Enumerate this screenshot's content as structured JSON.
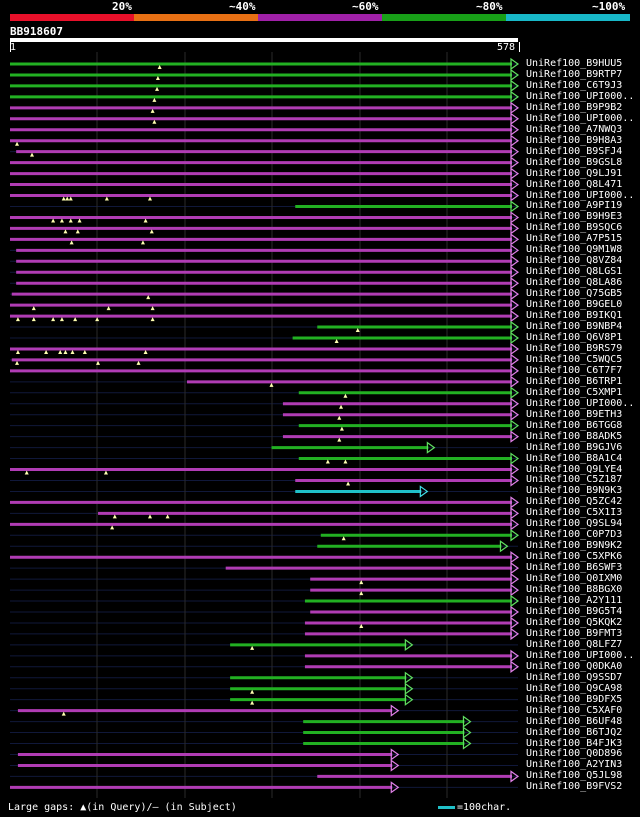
{
  "legend": {
    "labels": [
      "20%",
      "~40%",
      "~60%",
      "~80%",
      "~100%"
    ],
    "colors": [
      "#e8102a",
      "#e87014",
      "#a020a8",
      "#18a018",
      "#18b8c8"
    ]
  },
  "query": {
    "name": "BB918607",
    "start": "1",
    "end": "578",
    "length": 578
  },
  "footer": {
    "gaps": "Large gaps: ▲(in Query)/– (in Subject)",
    "scale": "=100char."
  },
  "colors": {
    "green": "#22b022",
    "magenta": "#b03cb4",
    "cyan": "#20c0c8",
    "arrow_green": "#60e060",
    "arrow_magenta": "#e080e8",
    "arrow_cyan": "#40e0e8"
  },
  "hits": [
    {
      "name": "UniRef100_B9HUU5",
      "start": 1,
      "end": 578,
      "color": "green",
      "gaps": [
        171
      ]
    },
    {
      "name": "UniRef100_B9RTP7",
      "start": 1,
      "end": 578,
      "color": "green",
      "gaps": [
        169
      ]
    },
    {
      "name": "UniRef100_C6T9J3",
      "start": 1,
      "end": 578,
      "color": "green",
      "gaps": [
        168
      ]
    },
    {
      "name": "UniRef100_UPI000..",
      "start": 1,
      "end": 578,
      "color": "green",
      "gaps": [
        165
      ]
    },
    {
      "name": "UniRef100_B9P9B2",
      "start": 1,
      "end": 578,
      "color": "magenta",
      "gaps": [
        163
      ]
    },
    {
      "name": "UniRef100_UPI000..",
      "start": 1,
      "end": 578,
      "color": "magenta",
      "gaps": [
        165
      ]
    },
    {
      "name": "UniRef100_A7NWQ3",
      "start": 1,
      "end": 578,
      "color": "magenta",
      "gaps": []
    },
    {
      "name": "UniRef100_B9H8A3",
      "start": 1,
      "end": 578,
      "color": "magenta",
      "gaps": [
        9
      ]
    },
    {
      "name": "UniRef100_B9SFJ4",
      "start": 8,
      "end": 578,
      "color": "magenta",
      "gaps": [
        26
      ]
    },
    {
      "name": "UniRef100_B9GSL8",
      "start": 1,
      "end": 578,
      "color": "magenta",
      "gaps": []
    },
    {
      "name": "UniRef100_Q9LJ91",
      "start": 1,
      "end": 578,
      "color": "magenta",
      "gaps": []
    },
    {
      "name": "UniRef100_Q8L471",
      "start": 1,
      "end": 578,
      "color": "magenta",
      "gaps": []
    },
    {
      "name": "UniRef100_UPI000..",
      "start": 1,
      "end": 578,
      "color": "magenta",
      "gaps": [
        62,
        66,
        70,
        111,
        160
      ]
    },
    {
      "name": "UniRef100_A9PI19",
      "start": 325,
      "end": 578,
      "color": "green",
      "gaps": []
    },
    {
      "name": "UniRef100_B9H9E3",
      "start": 1,
      "end": 578,
      "color": "magenta",
      "gaps": [
        50,
        60,
        70,
        80,
        155
      ]
    },
    {
      "name": "UniRef100_B9SQC6",
      "start": 1,
      "end": 578,
      "color": "magenta",
      "gaps": [
        64,
        78,
        162
      ]
    },
    {
      "name": "UniRef100_A7P515",
      "start": 1,
      "end": 578,
      "color": "magenta",
      "gaps": [
        71,
        152
      ]
    },
    {
      "name": "UniRef100_Q9M1W8",
      "start": 8,
      "end": 578,
      "color": "magenta",
      "gaps": []
    },
    {
      "name": "UniRef100_Q8VZ84",
      "start": 8,
      "end": 578,
      "color": "magenta",
      "gaps": []
    },
    {
      "name": "UniRef100_Q8LGS1",
      "start": 8,
      "end": 578,
      "color": "magenta",
      "gaps": []
    },
    {
      "name": "UniRef100_Q8LA86",
      "start": 8,
      "end": 578,
      "color": "magenta",
      "gaps": []
    },
    {
      "name": "UniRef100_Q75GB5",
      "start": 3,
      "end": 578,
      "color": "magenta",
      "gaps": [
        158
      ]
    },
    {
      "name": "UniRef100_B9GEL0",
      "start": 1,
      "end": 578,
      "color": "magenta",
      "gaps": [
        28,
        113,
        163
      ]
    },
    {
      "name": "UniRef100_B9IKQ1",
      "start": 1,
      "end": 578,
      "color": "magenta",
      "gaps": [
        10,
        28,
        50,
        60,
        75,
        100,
        163
      ]
    },
    {
      "name": "UniRef100_B9NBP4",
      "start": 350,
      "end": 578,
      "color": "green",
      "gaps": [
        396
      ]
    },
    {
      "name": "UniRef100_Q6V8P1",
      "start": 322,
      "end": 578,
      "color": "green",
      "gaps": [
        372
      ]
    },
    {
      "name": "UniRef100_B9RS79",
      "start": 1,
      "end": 578,
      "color": "magenta",
      "gaps": [
        10,
        42,
        58,
        64,
        72,
        86,
        155
      ]
    },
    {
      "name": "UniRef100_C5WQC5",
      "start": 3,
      "end": 578,
      "color": "magenta",
      "gaps": [
        9,
        101,
        147
      ]
    },
    {
      "name": "UniRef100_C6T7F7",
      "start": 1,
      "end": 578,
      "color": "magenta",
      "gaps": []
    },
    {
      "name": "UniRef100_B6TRP1",
      "start": 202,
      "end": 578,
      "color": "magenta",
      "gaps": [
        298
      ]
    },
    {
      "name": "UniRef100_C5XMP1",
      "start": 329,
      "end": 578,
      "color": "green",
      "gaps": [
        382
      ]
    },
    {
      "name": "UniRef100_UPI000..",
      "start": 311,
      "end": 578,
      "color": "magenta",
      "gaps": [
        377
      ]
    },
    {
      "name": "UniRef100_B9ETH3",
      "start": 311,
      "end": 578,
      "color": "magenta",
      "gaps": [
        375
      ]
    },
    {
      "name": "UniRef100_B6TGG8",
      "start": 329,
      "end": 578,
      "color": "green",
      "gaps": [
        378
      ]
    },
    {
      "name": "UniRef100_B8ADK5",
      "start": 311,
      "end": 578,
      "color": "magenta",
      "gaps": [
        375
      ]
    },
    {
      "name": "UniRef100_B9GJV6",
      "start": 298,
      "end": 483,
      "color": "green",
      "gaps": []
    },
    {
      "name": "UniRef100_B8A1C4",
      "start": 329,
      "end": 578,
      "color": "green",
      "gaps": [
        362,
        382
      ]
    },
    {
      "name": "UniRef100_Q9LYE4",
      "start": 1,
      "end": 578,
      "color": "magenta",
      "gaps": [
        20,
        110
      ]
    },
    {
      "name": "UniRef100_C5Z187",
      "start": 325,
      "end": 578,
      "color": "magenta",
      "gaps": [
        385
      ]
    },
    {
      "name": "UniRef100_B9N9K3",
      "start": 325,
      "end": 475,
      "color": "cyan",
      "gaps": []
    },
    {
      "name": "UniRef100_Q5ZC42",
      "start": 1,
      "end": 578,
      "color": "magenta",
      "gaps": []
    },
    {
      "name": "UniRef100_C5X1I3",
      "start": 101,
      "end": 578,
      "color": "magenta",
      "gaps": [
        120,
        160,
        180
      ]
    },
    {
      "name": "UniRef100_Q9SL94",
      "start": 1,
      "end": 578,
      "color": "magenta",
      "gaps": [
        117
      ]
    },
    {
      "name": "UniRef100_C0P7D3",
      "start": 354,
      "end": 578,
      "color": "green",
      "gaps": [
        380
      ]
    },
    {
      "name": "UniRef100_B9N9K2",
      "start": 350,
      "end": 566,
      "color": "green",
      "gaps": []
    },
    {
      "name": "UniRef100_C5XPK6",
      "start": 1,
      "end": 578,
      "color": "magenta",
      "gaps": []
    },
    {
      "name": "UniRef100_B6SWF3",
      "start": 246,
      "end": 578,
      "color": "magenta",
      "gaps": []
    },
    {
      "name": "UniRef100_Q0IXM0",
      "start": 342,
      "end": 578,
      "color": "magenta",
      "gaps": [
        400
      ]
    },
    {
      "name": "UniRef100_B8BGX0",
      "start": 342,
      "end": 578,
      "color": "magenta",
      "gaps": [
        400
      ]
    },
    {
      "name": "UniRef100_A2Y111",
      "start": 336,
      "end": 578,
      "color": "green",
      "gaps": []
    },
    {
      "name": "UniRef100_B9G5T4",
      "start": 342,
      "end": 578,
      "color": "magenta",
      "gaps": []
    },
    {
      "name": "UniRef100_Q5KQK2",
      "start": 336,
      "end": 578,
      "color": "magenta",
      "gaps": [
        400
      ]
    },
    {
      "name": "UniRef100_B9FMT3",
      "start": 336,
      "end": 578,
      "color": "magenta",
      "gaps": []
    },
    {
      "name": "UniRef100_Q8LFZ7",
      "start": 251,
      "end": 458,
      "color": "green",
      "gaps": [
        276
      ]
    },
    {
      "name": "UniRef100_UPI000..",
      "start": 336,
      "end": 578,
      "color": "magenta",
      "gaps": []
    },
    {
      "name": "UniRef100_Q0DKA0",
      "start": 336,
      "end": 578,
      "color": "magenta",
      "gaps": []
    },
    {
      "name": "UniRef100_Q9SSD7",
      "start": 251,
      "end": 458,
      "color": "green",
      "gaps": []
    },
    {
      "name": "UniRef100_Q9CA98",
      "start": 251,
      "end": 458,
      "color": "green",
      "gaps": [
        276
      ]
    },
    {
      "name": "UniRef100_B9DFX5",
      "start": 251,
      "end": 458,
      "color": "green",
      "gaps": [
        276
      ]
    },
    {
      "name": "UniRef100_C5XAF0",
      "start": 10,
      "end": 442,
      "color": "magenta",
      "gaps": [
        62
      ]
    },
    {
      "name": "UniRef100_B6UF48",
      "start": 334,
      "end": 524,
      "color": "green",
      "gaps": []
    },
    {
      "name": "UniRef100_B6TJQ2",
      "start": 334,
      "end": 524,
      "color": "green",
      "gaps": []
    },
    {
      "name": "UniRef100_B4FJK3",
      "start": 334,
      "end": 524,
      "color": "green",
      "gaps": []
    },
    {
      "name": "UniRef100_Q0D896",
      "start": 10,
      "end": 442,
      "color": "magenta",
      "gaps": []
    },
    {
      "name": "UniRef100_A2YIN3",
      "start": 10,
      "end": 442,
      "color": "magenta",
      "gaps": []
    },
    {
      "name": "UniRef100_Q5JL98",
      "start": 350,
      "end": 578,
      "color": "magenta",
      "gaps": []
    },
    {
      "name": "UniRef100_B9FVS2",
      "start": 1,
      "end": 442,
      "color": "magenta",
      "gaps": []
    }
  ]
}
